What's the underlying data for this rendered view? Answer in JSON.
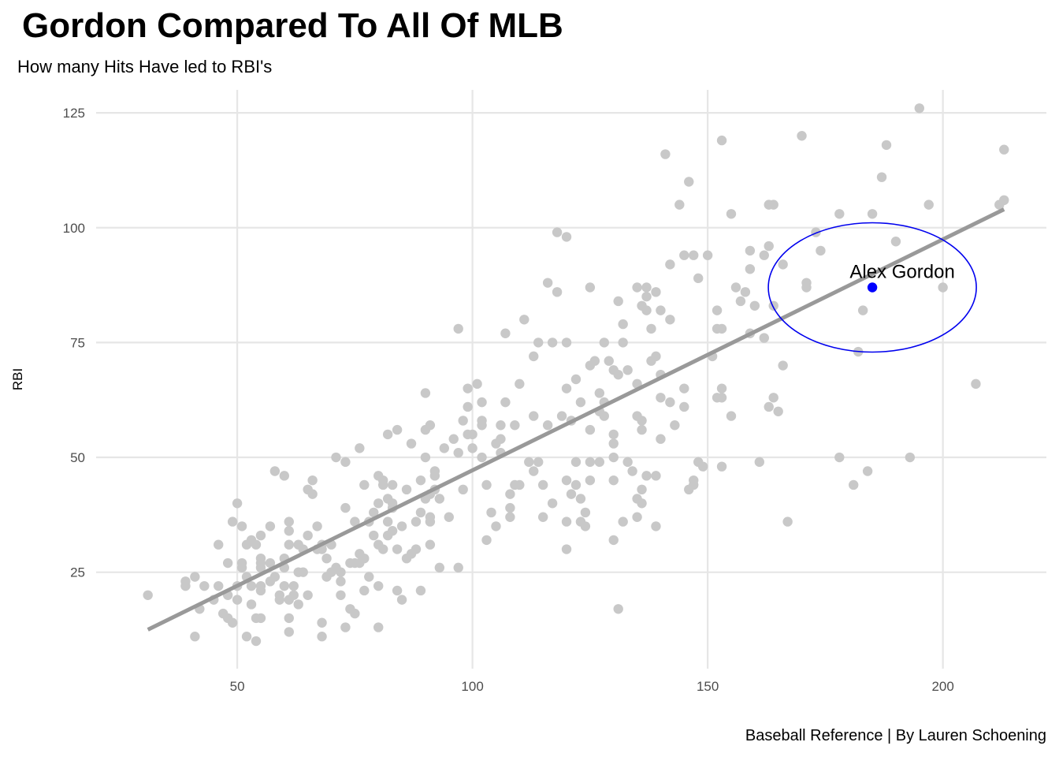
{
  "header": {
    "title": "Gordon Compared To All Of MLB",
    "subtitle": "How many Hits Have led to RBI's"
  },
  "caption": "Baseball Reference | By Lauren Schoening",
  "colors": {
    "point": "#c8c8c8",
    "highlight": "#0000ff",
    "trend_line": "#999999",
    "ellipse": "#0000ee",
    "grid": "#e6e6e6"
  },
  "chart_data": {
    "type": "scatter",
    "xlabel": "",
    "ylabel": "RBI",
    "xlim": [
      20,
      222
    ],
    "ylim": [
      4,
      130
    ],
    "x_ticks": [
      50,
      100,
      150,
      200
    ],
    "y_ticks": [
      25,
      50,
      75,
      100,
      125
    ],
    "grid": true,
    "trend_line": {
      "x": [
        31,
        213
      ],
      "y": [
        12.5,
        104
      ]
    },
    "highlight": {
      "label": "Alex Gordon",
      "x": 185,
      "y": 87,
      "circled": true
    },
    "points": [
      [
        31,
        20
      ],
      [
        39,
        23
      ],
      [
        39,
        22
      ],
      [
        41,
        24
      ],
      [
        41,
        11
      ],
      [
        42,
        17
      ],
      [
        43,
        22
      ],
      [
        45,
        19
      ],
      [
        46,
        31
      ],
      [
        46,
        22
      ],
      [
        47,
        16
      ],
      [
        48,
        27
      ],
      [
        48,
        20
      ],
      [
        48,
        15
      ],
      [
        49,
        36
      ],
      [
        49,
        14
      ],
      [
        50,
        40
      ],
      [
        50,
        22
      ],
      [
        50,
        19
      ],
      [
        51,
        35
      ],
      [
        51,
        27
      ],
      [
        51,
        26
      ],
      [
        52,
        31
      ],
      [
        52,
        24
      ],
      [
        52,
        11
      ],
      [
        53,
        32
      ],
      [
        53,
        22
      ],
      [
        53,
        18
      ],
      [
        54,
        31
      ],
      [
        54,
        15
      ],
      [
        54,
        10
      ],
      [
        55,
        33
      ],
      [
        55,
        28
      ],
      [
        55,
        27
      ],
      [
        55,
        26
      ],
      [
        55,
        22
      ],
      [
        55,
        21
      ],
      [
        55,
        15
      ],
      [
        57,
        35
      ],
      [
        57,
        27
      ],
      [
        57,
        23
      ],
      [
        58,
        47
      ],
      [
        58,
        24
      ],
      [
        59,
        19
      ],
      [
        59,
        20
      ],
      [
        60,
        46
      ],
      [
        60,
        28
      ],
      [
        60,
        26
      ],
      [
        60,
        22
      ],
      [
        61,
        36
      ],
      [
        61,
        34
      ],
      [
        61,
        31
      ],
      [
        61,
        19
      ],
      [
        61,
        15
      ],
      [
        61,
        12
      ],
      [
        62,
        20
      ],
      [
        62,
        22
      ],
      [
        63,
        18
      ],
      [
        63,
        25
      ],
      [
        63,
        31
      ],
      [
        64,
        30
      ],
      [
        64,
        25
      ],
      [
        65,
        43
      ],
      [
        65,
        33
      ],
      [
        65,
        20
      ],
      [
        66,
        45
      ],
      [
        66,
        42
      ],
      [
        67,
        35
      ],
      [
        67,
        30
      ],
      [
        68,
        31
      ],
      [
        68,
        30
      ],
      [
        68,
        14
      ],
      [
        68,
        11
      ],
      [
        69,
        28
      ],
      [
        69,
        24
      ],
      [
        70,
        31
      ],
      [
        70,
        25
      ],
      [
        71,
        50
      ],
      [
        71,
        26
      ],
      [
        72,
        25
      ],
      [
        72,
        23
      ],
      [
        72,
        20
      ],
      [
        73,
        49
      ],
      [
        73,
        39
      ],
      [
        73,
        13
      ],
      [
        74,
        27
      ],
      [
        74,
        17
      ],
      [
        75,
        36
      ],
      [
        75,
        27
      ],
      [
        75,
        16
      ],
      [
        76,
        52
      ],
      [
        76,
        29
      ],
      [
        76,
        27
      ],
      [
        77,
        44
      ],
      [
        77,
        28
      ],
      [
        77,
        21
      ],
      [
        78,
        36
      ],
      [
        78,
        24
      ],
      [
        79,
        38
      ],
      [
        79,
        33
      ],
      [
        80,
        46
      ],
      [
        80,
        40
      ],
      [
        80,
        31
      ],
      [
        80,
        22
      ],
      [
        80,
        13
      ],
      [
        81,
        45
      ],
      [
        81,
        44
      ],
      [
        81,
        30
      ],
      [
        82,
        55
      ],
      [
        82,
        41
      ],
      [
        82,
        36
      ],
      [
        82,
        33
      ],
      [
        83,
        44
      ],
      [
        83,
        40
      ],
      [
        83,
        39
      ],
      [
        83,
        34
      ],
      [
        84,
        56
      ],
      [
        84,
        30
      ],
      [
        84,
        21
      ],
      [
        85,
        19
      ],
      [
        85,
        35
      ],
      [
        86,
        43
      ],
      [
        86,
        28
      ],
      [
        87,
        53
      ],
      [
        87,
        29
      ],
      [
        88,
        36
      ],
      [
        88,
        30
      ],
      [
        89,
        45
      ],
      [
        89,
        38
      ],
      [
        89,
        21
      ],
      [
        90,
        64
      ],
      [
        90,
        56
      ],
      [
        90,
        50
      ],
      [
        90,
        41
      ],
      [
        91,
        57
      ],
      [
        91,
        42
      ],
      [
        91,
        37
      ],
      [
        91,
        36
      ],
      [
        91,
        31
      ],
      [
        92,
        47
      ],
      [
        92,
        46
      ],
      [
        92,
        43
      ],
      [
        93,
        41
      ],
      [
        93,
        26
      ],
      [
        94,
        52
      ],
      [
        95,
        37
      ],
      [
        96,
        54
      ],
      [
        97,
        78
      ],
      [
        97,
        51
      ],
      [
        97,
        26
      ],
      [
        98,
        58
      ],
      [
        98,
        43
      ],
      [
        99,
        65
      ],
      [
        99,
        61
      ],
      [
        99,
        55
      ],
      [
        100,
        55
      ],
      [
        100,
        52
      ],
      [
        101,
        66
      ],
      [
        102,
        57
      ],
      [
        102,
        50
      ],
      [
        102,
        62
      ],
      [
        102,
        58
      ],
      [
        103,
        44
      ],
      [
        103,
        32
      ],
      [
        104,
        38
      ],
      [
        105,
        35
      ],
      [
        105,
        53
      ],
      [
        106,
        57
      ],
      [
        106,
        54
      ],
      [
        106,
        51
      ],
      [
        107,
        77
      ],
      [
        107,
        62
      ],
      [
        108,
        42
      ],
      [
        108,
        37
      ],
      [
        108,
        39
      ],
      [
        109,
        57
      ],
      [
        109,
        44
      ],
      [
        110,
        44
      ],
      [
        110,
        66
      ],
      [
        111,
        80
      ],
      [
        112,
        49
      ],
      [
        113,
        47
      ],
      [
        113,
        72
      ],
      [
        113,
        59
      ],
      [
        114,
        75
      ],
      [
        114,
        49
      ],
      [
        115,
        44
      ],
      [
        115,
        37
      ],
      [
        116,
        88
      ],
      [
        116,
        57
      ],
      [
        117,
        75
      ],
      [
        117,
        40
      ],
      [
        118,
        99
      ],
      [
        118,
        86
      ],
      [
        119,
        59
      ],
      [
        120,
        98
      ],
      [
        120,
        75
      ],
      [
        120,
        65
      ],
      [
        120,
        45
      ],
      [
        120,
        36
      ],
      [
        120,
        30
      ],
      [
        121,
        58
      ],
      [
        121,
        42
      ],
      [
        122,
        67
      ],
      [
        122,
        49
      ],
      [
        122,
        44
      ],
      [
        123,
        62
      ],
      [
        123,
        41
      ],
      [
        123,
        36
      ],
      [
        124,
        38
      ],
      [
        124,
        35
      ],
      [
        125,
        87
      ],
      [
        125,
        70
      ],
      [
        125,
        56
      ],
      [
        125,
        49
      ],
      [
        125,
        45
      ],
      [
        126,
        71
      ],
      [
        127,
        64
      ],
      [
        127,
        60
      ],
      [
        127,
        49
      ],
      [
        128,
        75
      ],
      [
        128,
        62
      ],
      [
        128,
        59
      ],
      [
        129,
        71
      ],
      [
        130,
        69
      ],
      [
        130,
        55
      ],
      [
        130,
        53
      ],
      [
        130,
        50
      ],
      [
        130,
        45
      ],
      [
        130,
        32
      ],
      [
        131,
        84
      ],
      [
        131,
        68
      ],
      [
        131,
        17
      ],
      [
        132,
        79
      ],
      [
        132,
        75
      ],
      [
        132,
        36
      ],
      [
        133,
        69
      ],
      [
        133,
        49
      ],
      [
        134,
        47
      ],
      [
        135,
        87
      ],
      [
        135,
        66
      ],
      [
        135,
        59
      ],
      [
        135,
        41
      ],
      [
        135,
        37
      ],
      [
        136,
        83
      ],
      [
        136,
        58
      ],
      [
        136,
        43
      ],
      [
        136,
        40
      ],
      [
        136,
        56
      ],
      [
        137,
        87
      ],
      [
        137,
        85
      ],
      [
        137,
        82
      ],
      [
        137,
        46
      ],
      [
        138,
        78
      ],
      [
        138,
        71
      ],
      [
        139,
        86
      ],
      [
        139,
        72
      ],
      [
        139,
        46
      ],
      [
        139,
        35
      ],
      [
        140,
        82
      ],
      [
        140,
        68
      ],
      [
        140,
        63
      ],
      [
        140,
        54
      ],
      [
        141,
        116
      ],
      [
        142,
        92
      ],
      [
        142,
        80
      ],
      [
        142,
        62
      ],
      [
        143,
        57
      ],
      [
        144,
        105
      ],
      [
        145,
        94
      ],
      [
        145,
        65
      ],
      [
        145,
        61
      ],
      [
        146,
        110
      ],
      [
        146,
        43
      ],
      [
        147,
        94
      ],
      [
        147,
        45
      ],
      [
        147,
        44
      ],
      [
        148,
        89
      ],
      [
        148,
        49
      ],
      [
        149,
        48
      ],
      [
        150,
        94
      ],
      [
        151,
        72
      ],
      [
        152,
        82
      ],
      [
        152,
        78
      ],
      [
        152,
        63
      ],
      [
        153,
        119
      ],
      [
        153,
        78
      ],
      [
        153,
        65
      ],
      [
        153,
        63
      ],
      [
        153,
        48
      ],
      [
        155,
        103
      ],
      [
        155,
        59
      ],
      [
        156,
        87
      ],
      [
        157,
        84
      ],
      [
        158,
        86
      ],
      [
        159,
        95
      ],
      [
        159,
        91
      ],
      [
        159,
        77
      ],
      [
        160,
        83
      ],
      [
        161,
        49
      ],
      [
        162,
        94
      ],
      [
        162,
        76
      ],
      [
        163,
        105
      ],
      [
        163,
        96
      ],
      [
        163,
        61
      ],
      [
        164,
        105
      ],
      [
        164,
        83
      ],
      [
        164,
        63
      ],
      [
        165,
        60
      ],
      [
        166,
        92
      ],
      [
        166,
        70
      ],
      [
        167,
        36
      ],
      [
        170,
        120
      ],
      [
        171,
        88
      ],
      [
        171,
        87
      ],
      [
        173,
        99
      ],
      [
        174,
        95
      ],
      [
        178,
        103
      ],
      [
        178,
        50
      ],
      [
        181,
        44
      ],
      [
        182,
        73
      ],
      [
        183,
        82
      ],
      [
        184,
        47
      ],
      [
        185,
        103
      ],
      [
        187,
        111
      ],
      [
        188,
        118
      ],
      [
        190,
        97
      ],
      [
        193,
        50
      ],
      [
        195,
        126
      ],
      [
        197,
        105
      ],
      [
        200,
        87
      ],
      [
        207,
        66
      ],
      [
        212,
        105
      ],
      [
        213,
        106
      ],
      [
        213,
        117
      ]
    ]
  }
}
